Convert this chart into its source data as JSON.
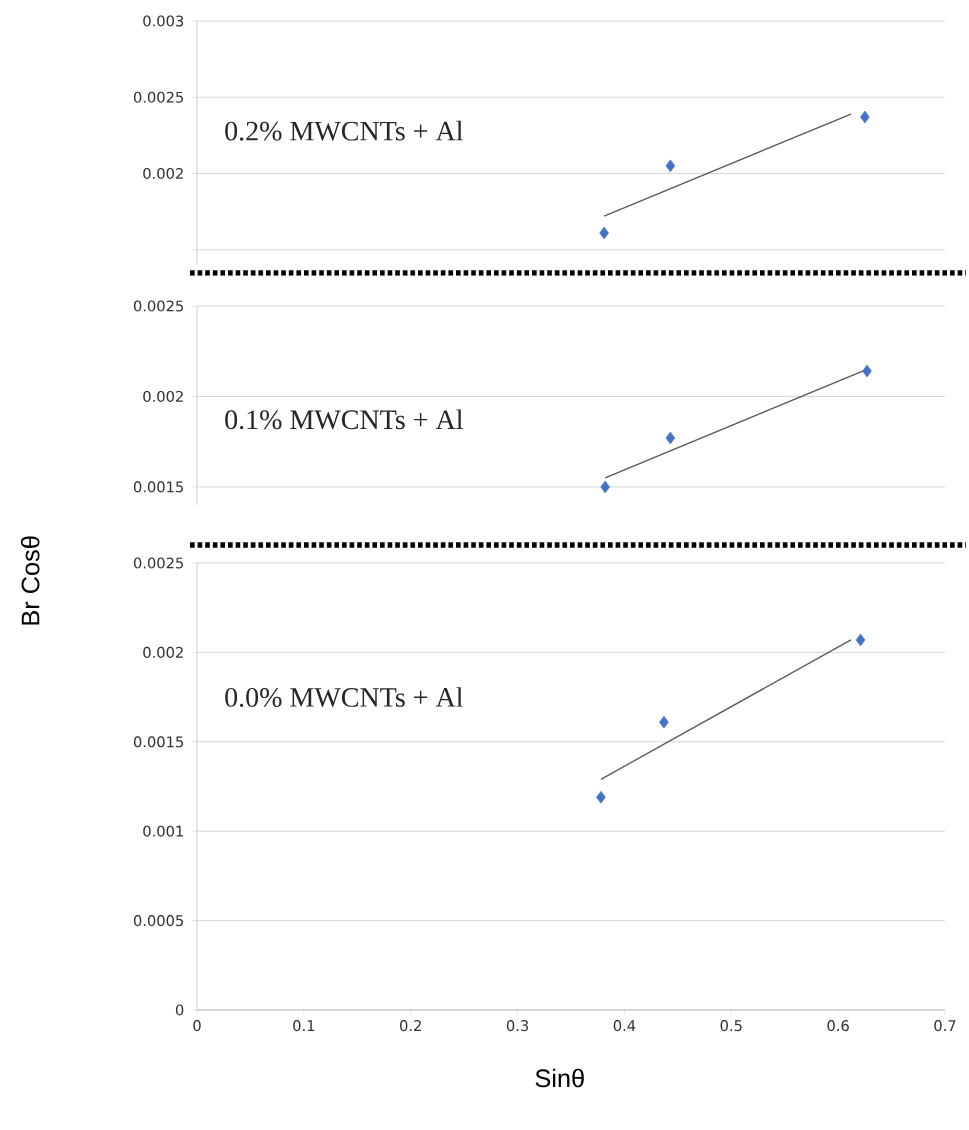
{
  "chart_data": [
    {
      "type": "scatter",
      "annotations": [
        "0.2% MWCNTs + Al"
      ],
      "series": [
        {
          "color": "#4472c4",
          "marker": "diamond",
          "x": [
            0.381,
            0.443,
            0.625
          ],
          "values": [
            0.00161,
            0.00205,
            0.00237
          ]
        },
        {
          "type": "line",
          "color": "#595959",
          "marker": "none",
          "x": [
            0.381,
            0.612
          ],
          "values": [
            0.00172,
            0.00239
          ]
        }
      ],
      "xlim": [
        0,
        0.7
      ],
      "ylim": [
        0.0014,
        0.003
      ],
      "yticks": [
        {
          "value": 0.0015,
          "label": null
        },
        0.002,
        0.0025,
        0.003
      ],
      "grid": "y",
      "tick_labels": "y"
    },
    {
      "type": "scatter",
      "annotations": [
        "0.1% MWCNTs + Al"
      ],
      "series": [
        {
          "color": "#4472c4",
          "marker": "diamond",
          "x": [
            0.382,
            0.443,
            0.627
          ],
          "values": [
            0.0015,
            0.00177,
            0.00214
          ]
        },
        {
          "type": "line",
          "color": "#595959",
          "marker": "none",
          "x": [
            0.382,
            0.627
          ],
          "values": [
            0.00155,
            0.00215
          ]
        }
      ],
      "xlim": [
        0,
        0.7
      ],
      "ylim": [
        0.0014,
        0.0025
      ],
      "yticks": [
        0.0015,
        0.002,
        0.0025
      ],
      "grid": "y",
      "tick_labels": "y"
    },
    {
      "type": "scatter",
      "annotations": [
        "0.0% MWCNTs + Al"
      ],
      "xlabel": "Sinθ",
      "ylabel": "Br Cosθ",
      "series": [
        {
          "color": "#4472c4",
          "marker": "diamond",
          "x": [
            0.378,
            0.437,
            0.621
          ],
          "values": [
            0.00119,
            0.00161,
            0.00207
          ]
        },
        {
          "type": "line",
          "color": "#595959",
          "marker": "none",
          "x": [
            0.378,
            0.612
          ],
          "values": [
            0.00129,
            0.00207
          ]
        }
      ],
      "xlim": [
        0,
        0.7
      ],
      "ylim": [
        0,
        0.0025
      ],
      "xticks": [
        0,
        0.1,
        0.2,
        0.3,
        0.4,
        0.5,
        0.6,
        0.7
      ],
      "yticks": [
        0,
        0.0005,
        0.001,
        0.0015,
        0.002,
        0.0025
      ],
      "grid": "y"
    }
  ]
}
